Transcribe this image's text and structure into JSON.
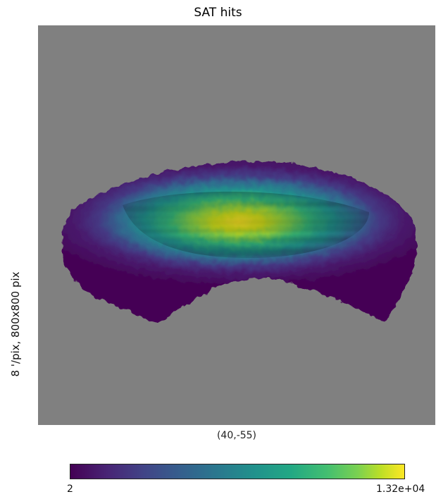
{
  "title": "SAT hits",
  "resolution_label": "8 '/pix,   800x800 pix",
  "center_label": "(40,-55)",
  "colorbar": {
    "min_label": "2",
    "max_label": "1.32e+04",
    "colormap": "viridis"
  },
  "colors": {
    "background": "#808080",
    "low": "#440154",
    "high": "#fde725"
  }
}
